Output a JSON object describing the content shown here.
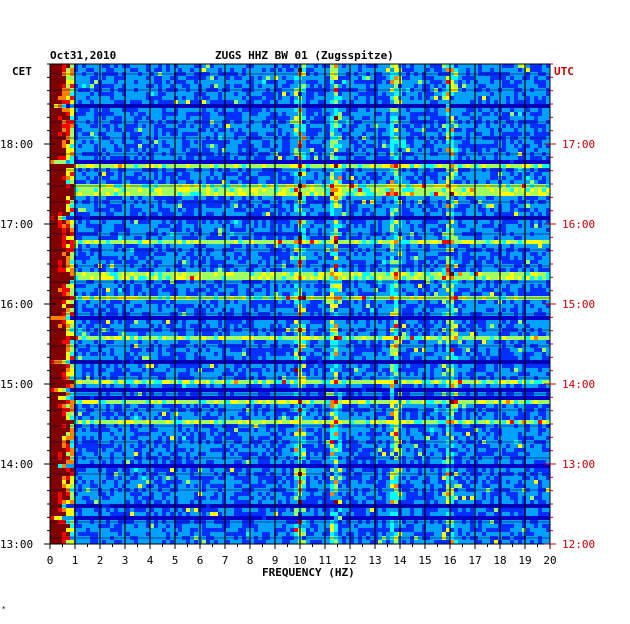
{
  "chart_data": {
    "type": "heatmap",
    "title": "ZUGS HHZ BW 01 (Zugsspitze)",
    "date": "Oct31,2010",
    "xlabel": "FREQUENCY (HZ)",
    "left_timezone": "CET",
    "right_timezone": "UTC",
    "xlim": [
      0,
      20
    ],
    "x_ticks": [
      "0",
      "1",
      "2",
      "3",
      "4",
      "5",
      "6",
      "7",
      "8",
      "9",
      "10",
      "11",
      "12",
      "13",
      "14",
      "15",
      "16",
      "17",
      "18",
      "19",
      "20"
    ],
    "left_ticks": [
      "18:00",
      "17:00",
      "16:00",
      "15:00",
      "14:00",
      "13:00"
    ],
    "right_ticks": [
      "17:00",
      "16:00",
      "15:00",
      "14:00",
      "13:00",
      "12:00"
    ],
    "time_range_cet": [
      "13:00",
      "19:00"
    ],
    "colorscale": [
      "#000080",
      "#0000c8",
      "#0030ff",
      "#00a0ff",
      "#00ffff",
      "#a0ff60",
      "#ffff00",
      "#ff8000",
      "#ff0000",
      "#800000"
    ],
    "strong_bands_hz": [
      0.2,
      0.4,
      0.6,
      10.0,
      11.4,
      13.8,
      16.0
    ],
    "left_axis_color": "#000000",
    "right_axis_color": "#cc0000"
  },
  "footer_mark": "*"
}
